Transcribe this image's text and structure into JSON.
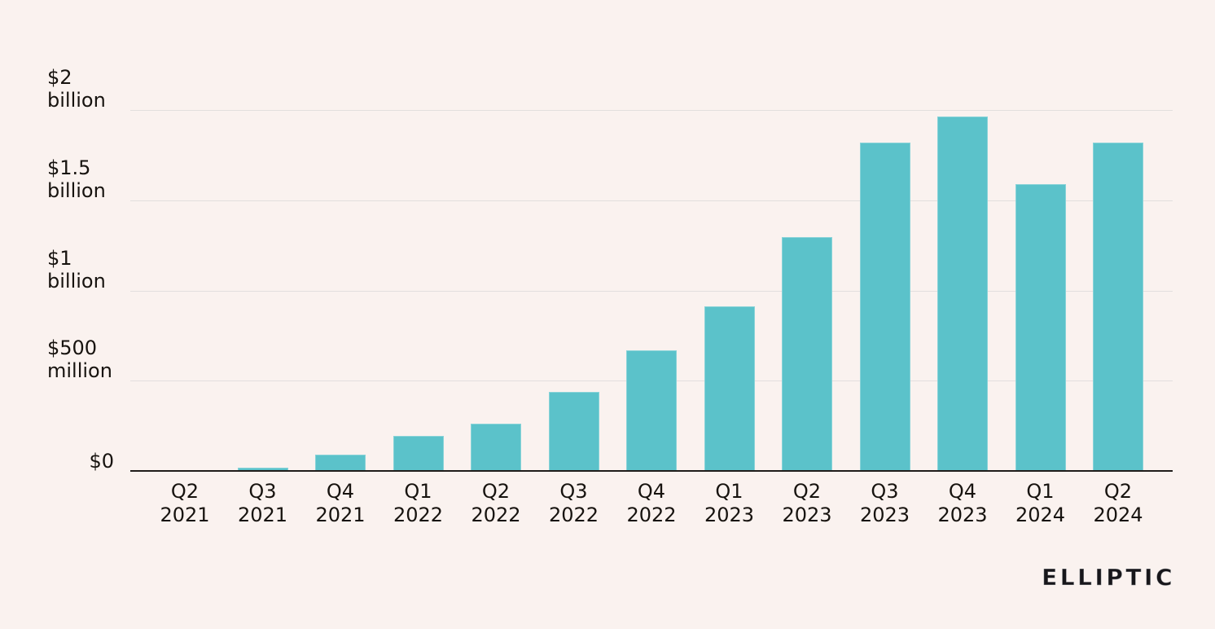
{
  "chart_data": {
    "type": "bar",
    "title": "",
    "xlabel": "",
    "ylabel": "",
    "ylim": [
      0,
      2000
    ],
    "grid": true,
    "legend": false,
    "unit": "USD millions",
    "categories": [
      {
        "quarter": "Q2",
        "year": "2021"
      },
      {
        "quarter": "Q3",
        "year": "2021"
      },
      {
        "quarter": "Q4",
        "year": "2021"
      },
      {
        "quarter": "Q1",
        "year": "2022"
      },
      {
        "quarter": "Q2",
        "year": "2022"
      },
      {
        "quarter": "Q3",
        "year": "2022"
      },
      {
        "quarter": "Q4",
        "year": "2022"
      },
      {
        "quarter": "Q1",
        "year": "2023"
      },
      {
        "quarter": "Q2",
        "year": "2023"
      },
      {
        "quarter": "Q3",
        "year": "2023"
      },
      {
        "quarter": "Q4",
        "year": "2023"
      },
      {
        "quarter": "Q1",
        "year": "2024"
      },
      {
        "quarter": "Q2",
        "year": "2024"
      }
    ],
    "values_usd_millions": [
      5,
      20,
      90,
      195,
      260,
      440,
      670,
      910,
      1295,
      1820,
      1965,
      1590,
      1820
    ],
    "y_ticks": [
      {
        "value": 2000,
        "label_lines": [
          "$2",
          "billion"
        ]
      },
      {
        "value": 1500,
        "label_lines": [
          "$1.5",
          "billion"
        ]
      },
      {
        "value": 1000,
        "label_lines": [
          "$1",
          "billion"
        ]
      },
      {
        "value": 500,
        "label_lines": [
          "$500",
          "million"
        ]
      },
      {
        "value": 0,
        "label_lines": [
          "$0"
        ]
      }
    ]
  },
  "theme": {
    "background": "#FAF2EF",
    "bar_color": "#5BC2CA",
    "gridline_color": "#E2DFDE",
    "axis_color": "#201C1A",
    "text_color": "#17130F",
    "logo_color": "#17161A"
  },
  "branding": {
    "logo_text": "ELLIPTIC"
  }
}
